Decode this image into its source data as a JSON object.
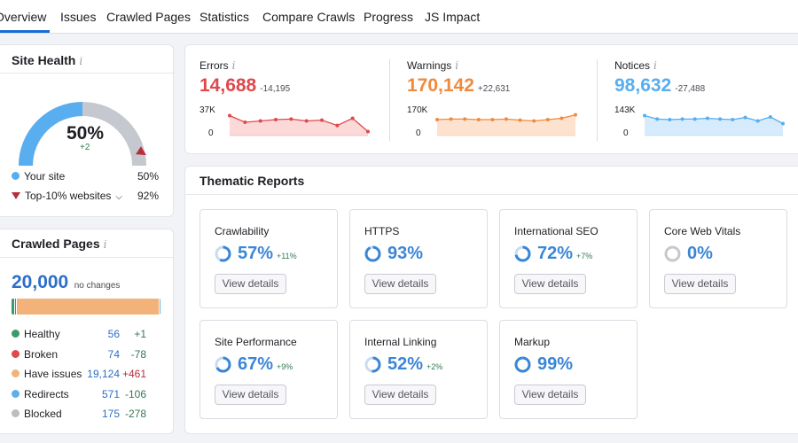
{
  "tabs": [
    "Overview",
    "Issues",
    "Crawled Pages",
    "Statistics",
    "Compare Crawls",
    "Progress",
    "JS Impact"
  ],
  "site_health": {
    "title": "Site Health",
    "info": "i",
    "percent": "50%",
    "delta": "+2",
    "value": 0.5,
    "your_site_label": "Your site",
    "your_site_value": "50%",
    "top10_label": "Top-10% websites",
    "top10_value": "92%",
    "top10_chevron": "chevron-down-icon",
    "colors": {
      "site": "#58aeef",
      "top10": "#b5303a",
      "track": "#c6c8cf"
    }
  },
  "crawled_pages": {
    "title": "Crawled Pages",
    "info": "i",
    "total": "20,000",
    "total_note": "no changes",
    "bar_segments": [
      {
        "name": "Healthy",
        "value": 56,
        "color": "#3d9a6c"
      },
      {
        "name": "Broken",
        "value": 74,
        "color": "#e0484c"
      },
      {
        "name": "Have issues",
        "value": 19124,
        "color": "#f3b27a"
      },
      {
        "name": "Redirects",
        "value": 571,
        "color": "#5fb0ea"
      },
      {
        "name": "Blocked",
        "value": 175,
        "color": "#bdbec5"
      }
    ],
    "rows": [
      {
        "label": "Healthy",
        "count": "56",
        "delta": "+1",
        "dot": "#3d9a6c",
        "delta_color": "#2f7a52"
      },
      {
        "label": "Broken",
        "count": "74",
        "delta": "-78",
        "dot": "#e0484c",
        "delta_color": "#2f7a52"
      },
      {
        "label": "Have issues",
        "count": "19,124",
        "delta": "+461",
        "dot": "#f3b27a",
        "delta_color": "#b5303a"
      },
      {
        "label": "Redirects",
        "count": "571",
        "delta": "-106",
        "dot": "#5fb0ea",
        "delta_color": "#2f7a52"
      },
      {
        "label": "Blocked",
        "count": "175",
        "delta": "-278",
        "dot": "#bdbec5",
        "delta_color": "#2f7a52"
      }
    ]
  },
  "metrics": [
    {
      "label": "Errors",
      "info": "i",
      "value": "14,688",
      "delta": "-14,195",
      "color": "#e0484c",
      "fill": "#fbd9d9",
      "y_top": "37K",
      "y_bottom": "0",
      "top_value": 37000,
      "series": [
        0.75,
        0.5,
        0.55,
        0.6,
        0.62,
        0.55,
        0.58,
        0.38,
        0.65,
        0.15
      ]
    },
    {
      "label": "Warnings",
      "info": "i",
      "value": "170,142",
      "delta": "+22,631",
      "color": "#f08a3e",
      "fill": "#fde3cf",
      "y_top": "170K",
      "y_bottom": "0",
      "top_value": 170000,
      "series": [
        0.6,
        0.62,
        0.62,
        0.6,
        0.6,
        0.62,
        0.58,
        0.55,
        0.6,
        0.65,
        0.78
      ]
    },
    {
      "label": "Notices",
      "info": "i",
      "value": "98,632",
      "delta": "-27,488",
      "color": "#58aeef",
      "fill": "#d6ebfb",
      "y_top": "143K",
      "y_bottom": "0",
      "top_value": 143000,
      "series": [
        0.75,
        0.62,
        0.6,
        0.62,
        0.62,
        0.65,
        0.62,
        0.6,
        0.68,
        0.55,
        0.7,
        0.45
      ]
    }
  ],
  "thematic": {
    "title": "Thematic Reports",
    "button_label": "View details",
    "items": [
      {
        "name": "Crawlability",
        "pct": "57%",
        "delta": "+11%",
        "value": 0.57
      },
      {
        "name": "HTTPS",
        "pct": "93%",
        "delta": "",
        "value": 0.93
      },
      {
        "name": "International SEO",
        "pct": "72%",
        "delta": "+7%",
        "value": 0.72
      },
      {
        "name": "Core Web Vitals",
        "pct": "0%",
        "delta": "",
        "value": 0.0
      },
      {
        "name": "Site Performance",
        "pct": "67%",
        "delta": "+9%",
        "value": 0.67
      },
      {
        "name": "Internal Linking",
        "pct": "52%",
        "delta": "+2%",
        "value": 0.52
      },
      {
        "name": "Markup",
        "pct": "99%",
        "delta": "",
        "value": 0.99
      }
    ],
    "ring_color": "#3a86d6",
    "ring_track": "#c8dcf2",
    "ring_track_empty": "#c6c8cf"
  }
}
